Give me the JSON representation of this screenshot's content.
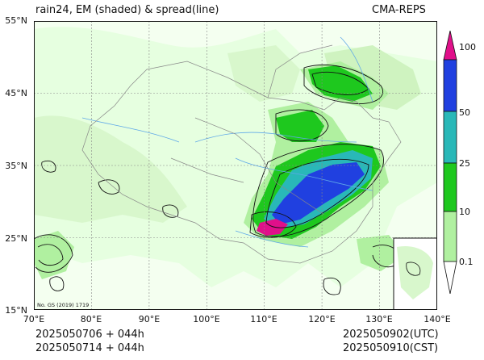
{
  "title_left": "rain24, EM (shaded) & spread(line)",
  "title_right": "CMA-REPS",
  "lat_labels": [
    "55°N",
    "45°N",
    "35°N",
    "25°N",
    "15°N"
  ],
  "lon_labels": [
    "70°E",
    "80°E",
    "90°E",
    "100°E",
    "110°E",
    "120°E",
    "130°E",
    "140°E"
  ],
  "colorbar": {
    "levels": [
      "0.1",
      "10",
      "25",
      "50",
      "100"
    ],
    "colors": [
      "#e6ffe0",
      "#b0f0a0",
      "#1ec81e",
      "#29b8b8",
      "#2040e0",
      "#e0108a"
    ]
  },
  "credit": "No. GS (2019) 1719",
  "info": {
    "init_utc": "2025050706  +  044h",
    "init_cst": "2025050714  +  044h",
    "valid_utc": "2025050902(UTC)",
    "valid_cst": "2025050910(CST)"
  }
}
